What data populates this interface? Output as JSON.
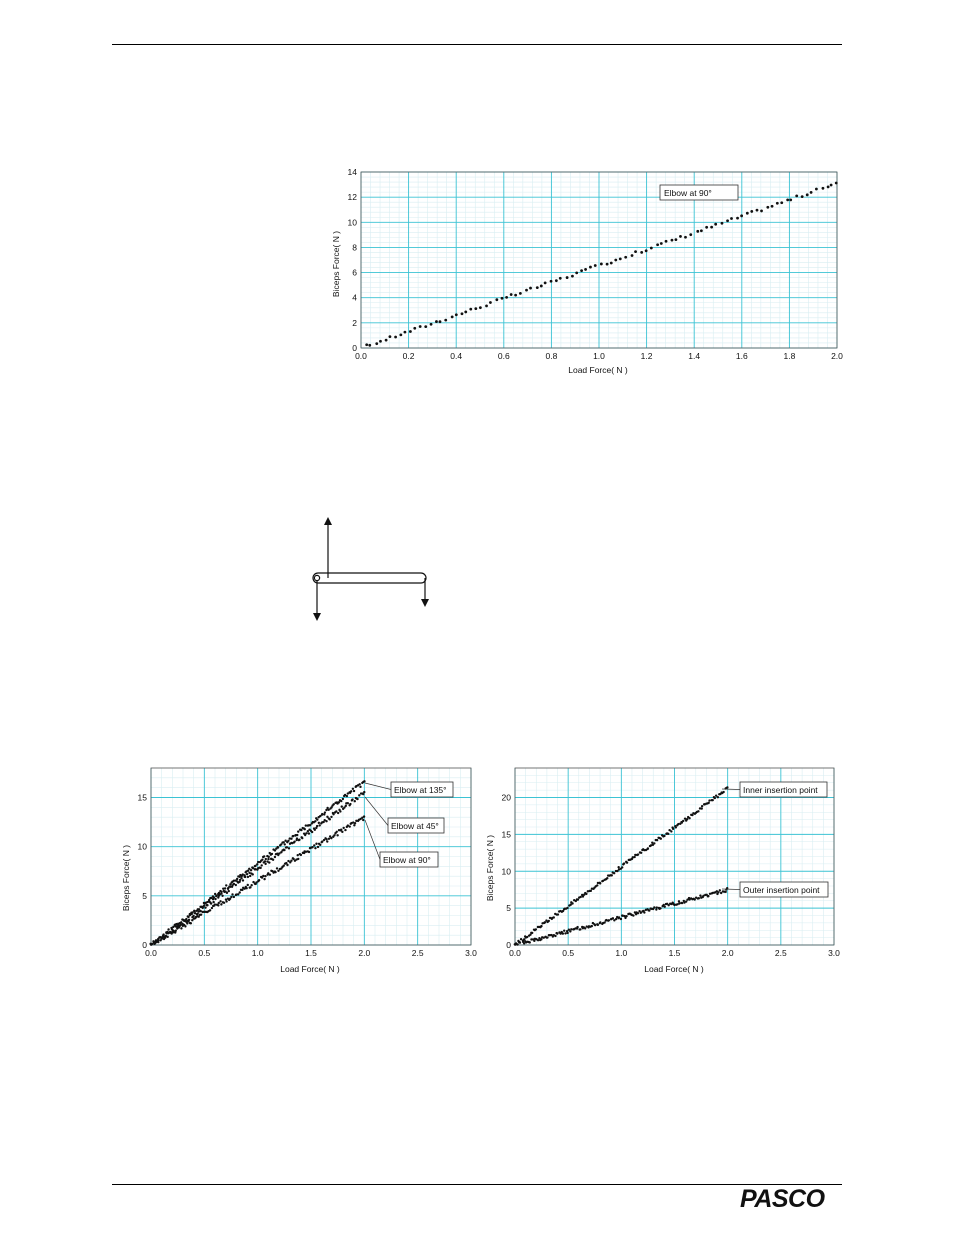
{
  "footer": {
    "logo": "PASCO"
  },
  "diagram": {
    "label": "lever arm free body diagram"
  },
  "chart_data": [
    {
      "type": "scatter",
      "xlabel": "Load Force( N )",
      "ylabel": "Biceps Force( N )",
      "xlim": [
        0,
        2.0
      ],
      "ylim": [
        0,
        14
      ],
      "xticks": [
        "0.0",
        "0.2",
        "0.4",
        "0.6",
        "0.8",
        "1.0",
        "1.2",
        "1.4",
        "1.6",
        "1.8",
        "2.0"
      ],
      "yticks": [
        "0",
        "2",
        "4",
        "6",
        "8",
        "10",
        "12",
        "14"
      ],
      "grid": true,
      "series": [
        {
          "name": "Elbow at 90°",
          "x_range": [
            0.02,
            2.0
          ],
          "slope": 6.55,
          "intercept": 0.0
        }
      ]
    },
    {
      "type": "scatter",
      "xlabel": "Load Force( N )",
      "ylabel": "Biceps Force( N )",
      "xlim": [
        0,
        3.0
      ],
      "ylim": [
        0,
        18
      ],
      "xticks": [
        "0.0",
        "0.5",
        "1.0",
        "1.5",
        "2.0",
        "2.5",
        "3.0"
      ],
      "yticks": [
        "0",
        "5",
        "10",
        "15"
      ],
      "grid": true,
      "series": [
        {
          "name": "Elbow at 135°",
          "x_range": [
            0.0,
            2.0
          ],
          "slope": 8.3,
          "intercept": 0.0
        },
        {
          "name": "Elbow at 45°",
          "x_range": [
            0.0,
            2.0
          ],
          "slope": 7.75,
          "intercept": 0.0
        },
        {
          "name": "Elbow at 90°",
          "x_range": [
            0.0,
            2.0
          ],
          "slope": 6.5,
          "intercept": 0.0
        }
      ]
    },
    {
      "type": "scatter",
      "xlabel": "Load Force( N )",
      "ylabel": "Biceps Force( N )",
      "xlim": [
        0,
        3.0
      ],
      "ylim": [
        0,
        24
      ],
      "xticks": [
        "0.0",
        "0.5",
        "1.0",
        "1.5",
        "2.0",
        "2.5",
        "3.0"
      ],
      "yticks": [
        "0",
        "5",
        "10",
        "15",
        "20"
      ],
      "grid": true,
      "series": [
        {
          "name": "Inner insertion point",
          "x_range": [
            0.0,
            2.0
          ],
          "slope": 10.6,
          "intercept": 0.0
        },
        {
          "name": "Outer insertion point",
          "x_range": [
            0.0,
            2.0
          ],
          "slope": 3.75,
          "intercept": 0.0
        }
      ]
    }
  ]
}
